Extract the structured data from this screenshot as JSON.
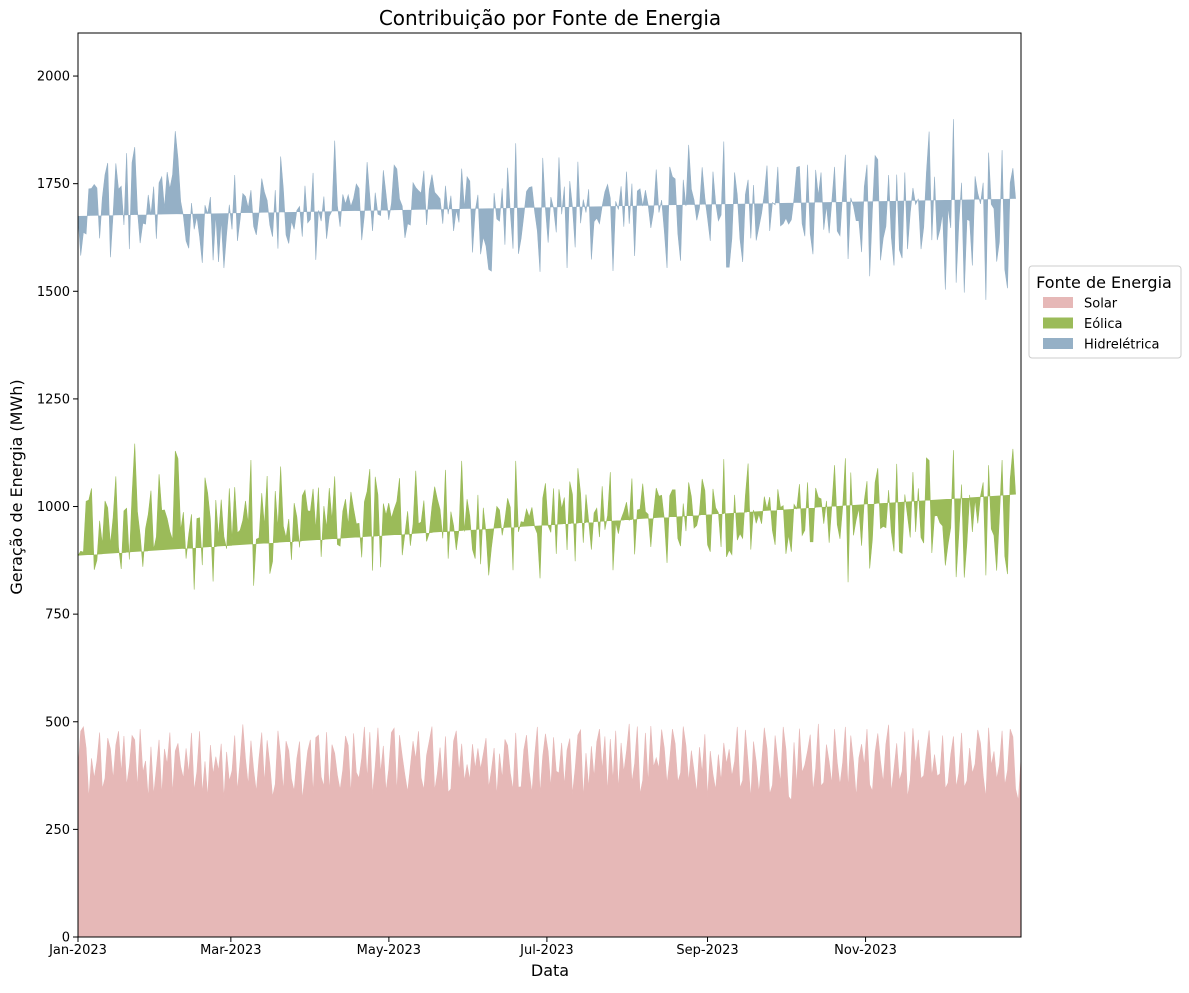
{
  "chart_data": {
    "type": "area",
    "stacked": true,
    "title": "Contribuição por Fonte de Energia",
    "xlabel": "Data",
    "ylabel": "Geração de Energia (MWh)",
    "x_start": "2023-01-01",
    "x_end": "2023-12-31",
    "xlim": [
      "2023-01-01",
      "2023-12-31"
    ],
    "ylim": [
      0,
      2100
    ],
    "x_ticks": [
      {
        "date": "2023-01-01",
        "label": "Jan-2023"
      },
      {
        "date": "2023-03-01",
        "label": "Mar-2023"
      },
      {
        "date": "2023-05-01",
        "label": "May-2023"
      },
      {
        "date": "2023-07-01",
        "label": "Jul-2023"
      },
      {
        "date": "2023-09-01",
        "label": "Sep-2023"
      },
      {
        "date": "2023-11-01",
        "label": "Nov-2023"
      }
    ],
    "y_ticks": [
      0,
      250,
      500,
      750,
      1000,
      1250,
      1500,
      1750,
      2000
    ],
    "grid": false,
    "legend": {
      "title": "Fonte de Energia",
      "placement": "outside-right"
    },
    "series": [
      {
        "name": "Solar",
        "color": "#e6b8b7",
        "values": [
          390,
          478,
          488,
          439,
          322,
          415,
          369,
          409,
          475,
          344,
          369,
          462,
          437,
          367,
          446,
          478,
          382,
          467,
          352,
          397,
          468,
          458,
          346,
          483,
          382,
          409,
          323,
          442,
          330,
          392,
          458,
          330,
          437,
          401,
          475,
          334,
          432,
          450,
          396,
          369,
          438,
          380,
          474,
          340,
          384,
          478,
          333,
          408,
          325,
          446,
          378,
          419,
          386,
          449,
          321,
          430,
          362,
          386,
          468,
          339,
          409,
          494,
          413,
          353,
          456,
          389,
          338,
          417,
          475,
          358,
          457,
          401,
          326,
          355,
          479,
          421,
          340,
          455,
          433,
          367,
          339,
          415,
          454,
          320,
          375,
          432,
          458,
          334,
          463,
          469,
          372,
          350,
          476,
          339,
          447,
          427,
          376,
          342,
          389,
          467,
          445,
          332,
          473,
          382,
          369,
          416,
          488,
          367,
          476,
          331,
          398,
          486,
          381,
          444,
          338,
          390,
          475,
          485,
          336,
          469,
          420,
          376,
          337,
          396,
          455,
          413,
          478,
          370,
          342,
          422,
          455,
          489,
          340,
          381,
          440,
          352,
          466,
          336,
          344,
          455,
          479,
          383,
          449,
          362,
          401,
          365,
          448,
          391,
          438,
          390,
          425,
          462,
          347,
          387,
          439,
          328,
          426,
          368,
          459,
          445,
          381,
          342,
          474,
          348,
          349,
          435,
          469,
          385,
          335,
          421,
          488,
          333,
          420,
          472,
          431,
          348,
          464,
          385,
          381,
          451,
          352,
          434,
          461,
          332,
          392,
          469,
          481,
          324,
          427,
          347,
          443,
          371,
          453,
          483,
          388,
          466,
          337,
          460,
          363,
          479,
          343,
          451,
          383,
          432,
          495,
          359,
          403,
          489,
          332,
          364,
          474,
          357,
          490,
          395,
          416,
          392,
          482,
          438,
          356,
          412,
          483,
          449,
          360,
          381,
          489,
          445,
          361,
          433,
          386,
          335,
          441,
          381,
          471,
          325,
          432,
          378,
          342,
          424,
          362,
          451,
          402,
          436,
          373,
          408,
          488,
          346,
          364,
          481,
          406,
          323,
          454,
          407,
          335,
          404,
          486,
          438,
          332,
          353,
          468,
          411,
          359,
          488,
          436,
          326,
          318,
          452,
          353,
          484,
          382,
          400,
          432,
          470,
          339,
          392,
          495,
          351,
          359,
          447,
          407,
          356,
          483,
          406,
          353,
          406,
          488,
          344,
          468,
          409,
          326,
          416,
          448,
          398,
          483,
          354,
          339,
          429,
          473,
          409,
          359,
          448,
          493,
          335,
          391,
          450,
          363,
          385,
          477,
          324,
          365,
          485,
          401,
          458,
          368,
          375,
          431,
          480,
          373,
          424,
          374,
          379,
          468,
          345,
          358,
          424,
          466,
          348,
          381,
          474,
          348,
          363,
          439,
          380,
          402,
          481,
          451,
          375,
          324,
          486,
          398,
          431,
          367,
          399,
          479,
          352,
          386,
          483,
          465,
          344,
          317,
          414
        ]
      },
      {
        "name": "Eólica",
        "color": "#9bbb59",
        "values": [
          496,
          418,
          406,
          573,
          693,
          627,
          484,
          466,
          492,
          569,
          644,
          535,
          475,
          608,
          624,
          427,
          473,
          523,
          644,
          480,
          559,
          688,
          642,
          451,
          478,
          540,
          659,
          595,
          570,
          538,
          617,
          661,
          555,
          571,
          467,
          589,
          697,
          661,
          548,
          618,
          441,
          556,
          508,
          467,
          588,
          496,
          531,
          659,
          706,
          524,
          448,
          596,
          543,
          567,
          609,
          472,
          680,
          536,
          577,
          600,
          536,
          474,
          600,
          607,
          652,
          427,
          586,
          510,
          556,
          597,
          614,
          443,
          546,
          681,
          471,
          672,
          614,
          473,
          538,
          509,
          669,
          561,
          451,
          705,
          663,
          558,
          531,
          707,
          484,
          575,
          511,
          651,
          474,
          704,
          521,
          643,
          536,
          566,
          600,
          550,
          512,
          702,
          522,
          578,
          592,
          466,
          523,
          668,
          611,
          520,
          671,
          541,
          478,
          563,
          642,
          618,
          498,
          509,
          676,
          597,
          467,
          561,
          652,
          513,
          504,
          670,
          482,
          594,
          672,
          497,
          483,
          511,
          706,
          636,
          553,
          574,
          619,
          543,
          644,
          501,
          420,
          563,
          657,
          580,
          616,
          613,
          452,
          488,
          589,
          476,
          572,
          478,
          493,
          517,
          515,
          672,
          566,
          565,
          511,
          574,
          617,
          510,
          632,
          593,
          616,
          528,
          525,
          591,
          663,
          532,
          449,
          500,
          599,
          582,
          524,
          592,
          578,
          505,
          659,
          544,
          669,
          465,
          597,
          696,
          481,
          620,
          550,
          592,
          601,
          619,
          457,
          614,
          543,
          446,
          659,
          480,
          642,
          620,
          489,
          484,
          594,
          520,
          605,
          578,
          472,
          706,
          486,
          503,
          662,
          689,
          514,
          625,
          416,
          589,
          627,
          632,
          544,
          532,
          513,
          613,
          556,
          590,
          566,
          527,
          518,
          498,
          695,
          590,
          564,
          621,
          545,
          683,
          566,
          586,
          463,
          663,
          655,
          562,
          544,
          659,
          481,
          463,
          515,
          619,
          434,
          591,
          562,
          545,
          694,
          577,
          538,
          554,
          647,
          556,
          537,
          556,
          690,
          591,
          443,
          629,
          639,
          514,
          454,
          608,
          577,
          553,
          642,
          568,
          551,
          545,
          624,
          448,
          579,
          651,
          526,
          667,
          601,
          566,
          509,
          647,
          613,
          552,
          572,
          593,
          624,
          480,
          611,
          524,
          643,
          580,
          461,
          616,
          576,
          502,
          585,
          627,
          616,
          540,
          595,
          503,
          545,
          606,
          505,
          649,
          532,
          506,
          551,
          654,
          563,
          595,
          540,
          584,
          560,
          540,
          682,
          627,
          519,
          554,
          605,
          583,
          487,
          518,
          554,
          527,
          665,
          488,
          555,
          577,
          487,
          553,
          588,
          561,
          615,
          480,
          573,
          681,
          516,
          610,
          550,
          502,
          484,
          576,
          629,
          533,
          457,
          581,
          669,
          684
        ]
      },
      {
        "name": "Hidrelétrica",
        "color": "#95b0c6",
        "values": [
          789,
          687,
          743,
          621,
          723,
          697,
          895,
          865,
          656,
          804,
          758,
          801,
          667,
          705,
          727,
          832,
          889,
          664,
          825,
          721,
          772,
          689,
          700,
          678,
          798,
          707,
          742,
          640,
          843,
          692,
          677,
          775,
          701,
          805,
          796,
          848,
          743,
          698,
          765,
          688,
          738,
          664,
          723,
          837,
          702,
          653,
          702,
          633,
          649,
          749,
          746,
          663,
          639,
          649,
          624,
          731,
          659,
          722,
          725,
          678,
          722,
          759,
          707,
          734,
          627,
          835,
          707,
          755,
          731,
          775,
          640,
          810,
          755,
          699,
          649,
          720,
          784,
          703,
          640,
          787,
          636,
          712,
          792,
          602,
          707,
          669,
          678,
          734,
          626,
          644,
          780,
          719,
          672,
          631,
          719,
          780,
          787,
          742,
          736,
          686,
          767,
          663,
          721,
          789,
          778,
          737,
          667,
          765,
          634,
          789,
          660,
          652,
          817,
          774,
          746,
          658,
          731,
          799,
          772,
          648,
          811,
          687,
          668,
          745,
          793,
          658,
          774,
          764,
          766,
          735,
          799,
          771,
          684,
          706,
          722,
          731,
          660,
          800,
          734,
          684,
          790,
          714,
          679,
          751,
          749,
          778,
          690,
          807,
          697,
          720,
          629,
          665,
          711,
          643,
          774,
          668,
          671,
          806,
          638,
          768,
          686,
          747,
          738,
          646,
          658,
          713,
          738,
          765,
          745,
          732,
          703,
          712,
          791,
          637,
          658,
          779,
          651,
          747,
          771,
          684,
          722,
          655,
          698,
          668,
          729,
          712,
          627,
          797,
          655,
          771,
          674,
          677,
          674,
          728,
          651,
          785,
          769,
          636,
          695,
          746,
          753,
          773,
          662,
          768,
          690,
          685,
          693,
          741,
          744,
          645,
          747,
          719,
          741,
          700,
          740,
          659,
          686,
          669,
          685,
          764,
          727,
          722,
          708,
          663,
          752,
          755,
          784,
          714,
          762,
          709,
          707,
          724,
          680,
          758,
          722,
          737,
          708,
          678,
          771,
          738,
          673,
          657,
          735,
          749,
          802,
          684,
          642,
          699,
          659,
          723,
          755,
          657,
          667,
          721,
          704,
          798,
          618,
          762,
          790,
          749,
          654,
          655,
          780,
          722,
          771,
          711,
          793,
          738,
          724,
          683,
          738,
          715,
          668,
          739,
          701,
          758,
          683,
          686,
          719,
          707,
          693,
          682,
          704,
          729,
          705,
          751,
          638,
          765,
          695,
          668,
          682,
          729,
          735,
          679,
          764,
          759,
          717,
          623,
          669,
          700,
          732,
          685,
          664,
          672,
          701,
          686,
          748,
          620,
          753,
          660,
          761,
          673,
          670,
          734,
          663,
          764,
          727,
          788,
          640,
          681,
          727,
          641,
          784,
          696,
          769,
          684,
          723,
          701,
          662,
          751,
          637,
          619,
          750,
          767,
          679,
          696,
          640,
          726,
          754,
          759,
          718,
          640,
          720,
          666,
          664,
          688,
          652,
          687,
          700,
          741,
          624,
          644,
          612
        ]
      }
    ]
  }
}
